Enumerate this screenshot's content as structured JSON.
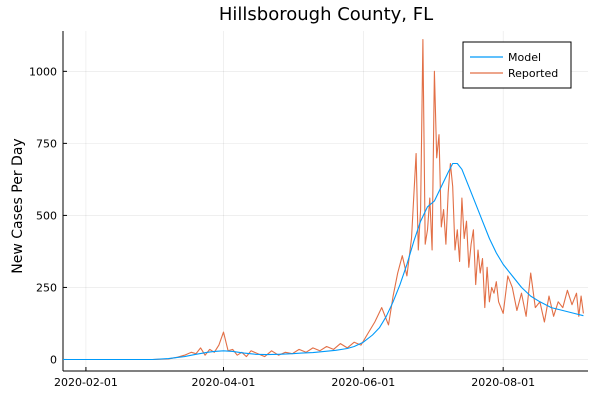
{
  "chart_data": {
    "type": "line",
    "title": "Hillsborough County, FL",
    "xlabel": "",
    "ylabel": "New Cases Per Day",
    "xlim": [
      "2020-01-22",
      "2020-09-07"
    ],
    "ylim": [
      -40,
      1140
    ],
    "x_ticks": [
      "2020-02-01",
      "2020-04-01",
      "2020-06-01",
      "2020-08-01"
    ],
    "y_ticks": [
      0,
      250,
      500,
      750,
      1000
    ],
    "grid": true,
    "legend": "top-right",
    "colors": {
      "Model": "#009AFA",
      "Reported": "#E26F46"
    },
    "series": [
      {
        "name": "Model",
        "x": [
          "2020-01-22",
          "2020-02-15",
          "2020-03-01",
          "2020-03-08",
          "2020-03-15",
          "2020-03-20",
          "2020-03-25",
          "2020-03-28",
          "2020-04-01",
          "2020-04-05",
          "2020-04-10",
          "2020-04-15",
          "2020-04-20",
          "2020-04-25",
          "2020-05-01",
          "2020-05-05",
          "2020-05-10",
          "2020-05-15",
          "2020-05-20",
          "2020-05-25",
          "2020-05-28",
          "2020-06-01",
          "2020-06-05",
          "2020-06-08",
          "2020-06-11",
          "2020-06-14",
          "2020-06-17",
          "2020-06-20",
          "2020-06-23",
          "2020-06-26",
          "2020-06-29",
          "2020-07-02",
          "2020-07-05",
          "2020-07-08",
          "2020-07-10",
          "2020-07-12",
          "2020-07-14",
          "2020-07-17",
          "2020-07-20",
          "2020-07-23",
          "2020-07-26",
          "2020-07-29",
          "2020-08-01",
          "2020-08-05",
          "2020-08-09",
          "2020-08-13",
          "2020-08-17",
          "2020-08-22",
          "2020-08-27",
          "2020-09-01",
          "2020-09-05"
        ],
        "values": [
          0,
          0,
          0,
          3,
          10,
          18,
          25,
          28,
          30,
          28,
          22,
          18,
          17,
          18,
          20,
          22,
          24,
          28,
          32,
          38,
          45,
          60,
          85,
          110,
          150,
          200,
          260,
          330,
          410,
          480,
          530,
          550,
          600,
          650,
          680,
          680,
          660,
          600,
          540,
          480,
          420,
          370,
          330,
          290,
          250,
          220,
          200,
          180,
          170,
          160,
          152
        ]
      },
      {
        "name": "Reported",
        "x": [
          "2020-01-22",
          "2020-02-10",
          "2020-03-01",
          "2020-03-08",
          "2020-03-12",
          "2020-03-15",
          "2020-03-18",
          "2020-03-20",
          "2020-03-22",
          "2020-03-24",
          "2020-03-26",
          "2020-03-28",
          "2020-03-30",
          "2020-04-01",
          "2020-04-03",
          "2020-04-05",
          "2020-04-07",
          "2020-04-09",
          "2020-04-11",
          "2020-04-13",
          "2020-04-16",
          "2020-04-19",
          "2020-04-22",
          "2020-04-25",
          "2020-04-28",
          "2020-05-01",
          "2020-05-04",
          "2020-05-07",
          "2020-05-10",
          "2020-05-13",
          "2020-05-16",
          "2020-05-19",
          "2020-05-22",
          "2020-05-25",
          "2020-05-28",
          "2020-05-31",
          "2020-06-03",
          "2020-06-06",
          "2020-06-09",
          "2020-06-12",
          "2020-06-14",
          "2020-06-16",
          "2020-06-18",
          "2020-06-20",
          "2020-06-22",
          "2020-06-24",
          "2020-06-25",
          "2020-06-26",
          "2020-06-27",
          "2020-06-28",
          "2020-06-29",
          "2020-06-30",
          "2020-07-01",
          "2020-07-02",
          "2020-07-03",
          "2020-07-04",
          "2020-07-05",
          "2020-07-06",
          "2020-07-07",
          "2020-07-08",
          "2020-07-09",
          "2020-07-10",
          "2020-07-11",
          "2020-07-12",
          "2020-07-13",
          "2020-07-14",
          "2020-07-15",
          "2020-07-16",
          "2020-07-17",
          "2020-07-18",
          "2020-07-19",
          "2020-07-20",
          "2020-07-21",
          "2020-07-22",
          "2020-07-23",
          "2020-07-24",
          "2020-07-25",
          "2020-07-26",
          "2020-07-27",
          "2020-07-28",
          "2020-07-29",
          "2020-07-30",
          "2020-08-01",
          "2020-08-03",
          "2020-08-05",
          "2020-08-07",
          "2020-08-09",
          "2020-08-11",
          "2020-08-13",
          "2020-08-15",
          "2020-08-17",
          "2020-08-19",
          "2020-08-21",
          "2020-08-23",
          "2020-08-25",
          "2020-08-27",
          "2020-08-29",
          "2020-08-31",
          "2020-09-02",
          "2020-09-03",
          "2020-09-04",
          "2020-09-05"
        ],
        "values": [
          0,
          0,
          0,
          2,
          8,
          15,
          25,
          20,
          40,
          15,
          35,
          25,
          50,
          95,
          30,
          35,
          15,
          25,
          10,
          30,
          20,
          10,
          30,
          15,
          25,
          20,
          35,
          25,
          40,
          30,
          45,
          35,
          55,
          40,
          60,
          50,
          90,
          130,
          180,
          120,
          220,
          300,
          360,
          290,
          420,
          715,
          380,
          520,
          1110,
          400,
          450,
          560,
          380,
          1000,
          700,
          780,
          460,
          520,
          400,
          580,
          680,
          600,
          380,
          450,
          340,
          560,
          420,
          480,
          320,
          400,
          450,
          260,
          380,
          300,
          350,
          180,
          320,
          200,
          250,
          230,
          270,
          200,
          160,
          290,
          250,
          170,
          230,
          150,
          300,
          180,
          200,
          130,
          220,
          150,
          200,
          180,
          240,
          190,
          230,
          150,
          220,
          160
        ]
      }
    ]
  }
}
